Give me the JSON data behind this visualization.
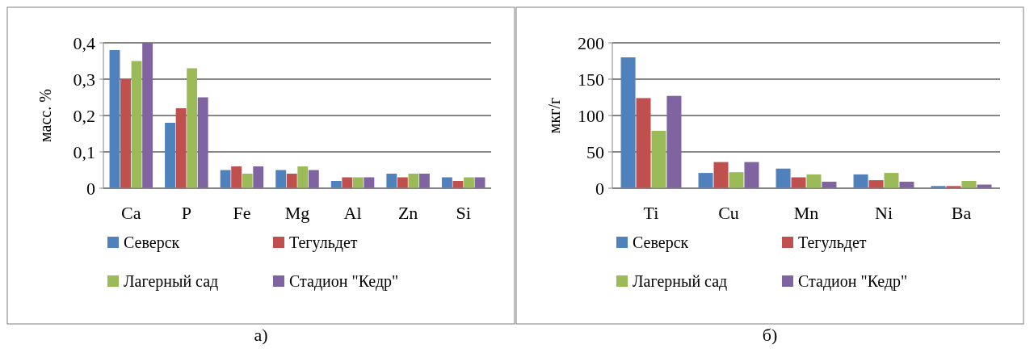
{
  "chart_data": [
    {
      "type": "bar",
      "ylabel": "масс. %",
      "categories": [
        "Ca",
        "P",
        "Fe",
        "Mg",
        "Al",
        "Zn",
        "Si"
      ],
      "series": [
        {
          "name": "Северск",
          "color": "#4f81bd",
          "values": [
            0.38,
            0.18,
            0.05,
            0.05,
            0.02,
            0.04,
            0.03
          ]
        },
        {
          "name": "Тегульдет",
          "color": "#c0504d",
          "values": [
            0.3,
            0.22,
            0.06,
            0.04,
            0.03,
            0.03,
            0.02
          ]
        },
        {
          "name": "Лагерный сад",
          "color": "#9bbb59",
          "values": [
            0.35,
            0.33,
            0.04,
            0.06,
            0.03,
            0.04,
            0.03
          ]
        },
        {
          "name": "Стадион \"Кедр\"",
          "color": "#8064a2",
          "values": [
            0.4,
            0.25,
            0.06,
            0.05,
            0.03,
            0.04,
            0.03
          ]
        }
      ],
      "ylim": [
        0,
        0.4
      ],
      "yticks": [
        0,
        {
          "value": 0.1,
          "label": "0,1"
        },
        {
          "value": 0.2,
          "label": "0,2"
        },
        {
          "value": 0.3,
          "label": "0,3"
        },
        {
          "value": 0.4,
          "label": "0,4"
        }
      ],
      "grid": "y",
      "legend": "bottom",
      "annotations": [
        "а)"
      ]
    },
    {
      "type": "bar",
      "ylabel": "мкг/г",
      "categories": [
        "Ti",
        "Cu",
        "Mn",
        "Ni",
        "Ba"
      ],
      "series": [
        {
          "name": "Северск",
          "color": "#4f81bd",
          "values": [
            180,
            21,
            27,
            19,
            3
          ]
        },
        {
          "name": "Тегульдет",
          "color": "#c0504d",
          "values": [
            124,
            36,
            15,
            11,
            3
          ]
        },
        {
          "name": "Лагерный сад",
          "color": "#9bbb59",
          "values": [
            79,
            22,
            19,
            21,
            10
          ]
        },
        {
          "name": "Стадион \"Кедр\"",
          "color": "#8064a2",
          "values": [
            127,
            36,
            9,
            9,
            5
          ]
        }
      ],
      "ylim": [
        0,
        200
      ],
      "yticks": [
        0,
        50,
        100,
        150,
        200
      ],
      "grid": "y",
      "legend": "bottom",
      "annotations": [
        "б)"
      ]
    }
  ]
}
